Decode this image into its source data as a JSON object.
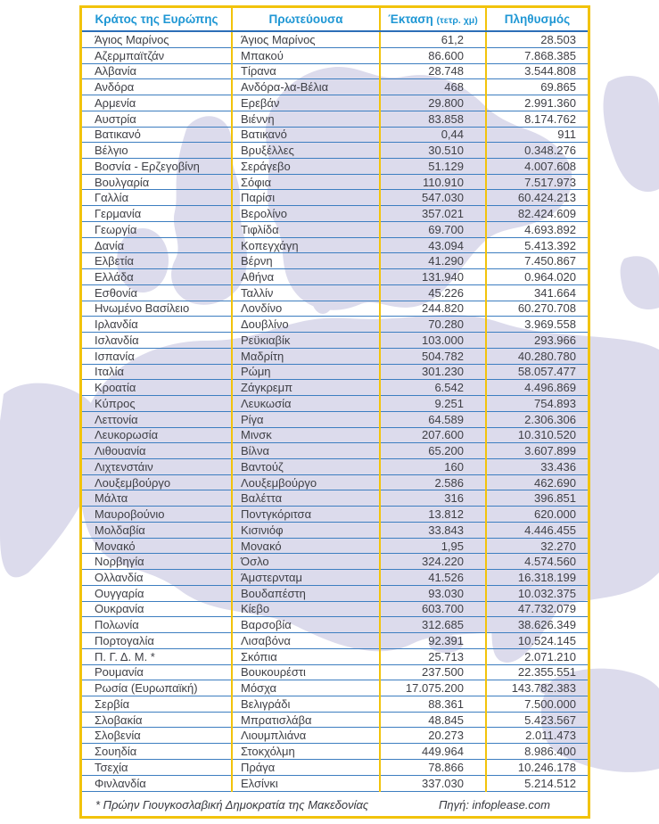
{
  "colors": {
    "frame_yellow": "#F2C30B",
    "header_blue": "#1F97D4",
    "header_rule_blue": "#2D6FB7",
    "row_rule_blue": "#3D7EC0",
    "body_text": "#3F4046",
    "map_lavender": "#DCDBEC"
  },
  "table": {
    "columns": [
      {
        "label": "Κράτος της Ευρώπης"
      },
      {
        "label": "Πρωτεύουσα"
      },
      {
        "label": "Έκταση",
        "unit": "(τετρ. χμ)"
      },
      {
        "label": "Πληθυσμός"
      }
    ],
    "rows": [
      {
        "country": "Άγιος Μαρίνος",
        "capital": "Άγιος Μαρίνος",
        "area": "61,2",
        "population": "28.503"
      },
      {
        "country": "Αζερμπαϊτζάν",
        "capital": "Μπακού",
        "area": "86.600",
        "population": "7.868.385"
      },
      {
        "country": "Αλβανία",
        "capital": "Τίρανα",
        "area": "28.748",
        "population": "3.544.808"
      },
      {
        "country": "Ανδόρα",
        "capital": "Ανδόρα-λα-Βέλια",
        "area": "468",
        "population": "69.865"
      },
      {
        "country": "Αρμενία",
        "capital": "Ερεβάν",
        "area": "29.800",
        "population": "2.991.360"
      },
      {
        "country": "Αυστρία",
        "capital": "Βιέννη",
        "area": "83.858",
        "population": "8.174.762"
      },
      {
        "country": "Βατικανό",
        "capital": "Βατικανό",
        "area": "0,44",
        "population": "911"
      },
      {
        "country": "Βέλγιο",
        "capital": "Βρυξέλλες",
        "area": "30.510",
        "population": "0.348.276"
      },
      {
        "country": "Βοσνία - Ερζεγοβίνη",
        "capital": "Σεράγεβο",
        "area": "51.129",
        "population": "4.007.608"
      },
      {
        "country": "Βουλγαρία",
        "capital": "Σόφια",
        "area": "110.910",
        "population": "7.517.973"
      },
      {
        "country": "Γαλλία",
        "capital": "Παρίσι",
        "area": "547.030",
        "population": "60.424.213"
      },
      {
        "country": "Γερμανία",
        "capital": "Βερολίνο",
        "area": "357.021",
        "population": "82.424.609"
      },
      {
        "country": "Γεωργία",
        "capital": "Τιφλίδα",
        "area": "69.700",
        "population": "4.693.892"
      },
      {
        "country": "Δανία",
        "capital": "Κοπεγχάγη",
        "area": "43.094",
        "population": "5.413.392"
      },
      {
        "country": "Ελβετία",
        "capital": "Βέρνη",
        "area": "41.290",
        "population": "7.450.867"
      },
      {
        "country": "Ελλάδα",
        "capital": "Αθήνα",
        "area": "131.940",
        "population": "0.964.020"
      },
      {
        "country": "Εσθονία",
        "capital": "Ταλλίν",
        "area": "45.226",
        "population": "341.664"
      },
      {
        "country": "Ηνωμένο Βασίλειο",
        "capital": "Λονδίνο",
        "area": "244.820",
        "population": "60.270.708"
      },
      {
        "country": "Ιρλανδία",
        "capital": "Δουβλίνο",
        "area": "70.280",
        "population": "3.969.558"
      },
      {
        "country": "Ισλανδία",
        "capital": "Ρεϋκιαβίκ",
        "area": "103.000",
        "population": "293.966"
      },
      {
        "country": "Ισπανία",
        "capital": "Μαδρίτη",
        "area": "504.782",
        "population": "40.280.780"
      },
      {
        "country": "Ιταλία",
        "capital": "Ρώμη",
        "area": "301.230",
        "population": "58.057.477"
      },
      {
        "country": "Κροατία",
        "capital": "Ζάγκρεμπ",
        "area": "6.542",
        "population": "4.496.869"
      },
      {
        "country": "Κύπρος",
        "capital": "Λευκωσία",
        "area": "9.251",
        "population": "754.893"
      },
      {
        "country": "Λεττονία",
        "capital": "Ρίγα",
        "area": "64.589",
        "population": "2.306.306"
      },
      {
        "country": "Λευκορωσία",
        "capital": "Μινσκ",
        "area": "207.600",
        "population": "10.310.520"
      },
      {
        "country": "Λιθουανία",
        "capital": "Βίλνα",
        "area": "65.200",
        "population": "3.607.899"
      },
      {
        "country": "Λιχτενστάιν",
        "capital": "Βαντούζ",
        "area": "160",
        "population": "33.436"
      },
      {
        "country": "Λουξεμβούργο",
        "capital": "Λουξεμβούργο",
        "area": "2.586",
        "population": "462.690"
      },
      {
        "country": "Μάλτα",
        "capital": "Βαλέττα",
        "area": "316",
        "population": "396.851"
      },
      {
        "country": "Μαυροβούνιο",
        "capital": "Ποντγκόριτσα",
        "area": "13.812",
        "population": "620.000"
      },
      {
        "country": "Μολδαβία",
        "capital": "Κισινιόφ",
        "area": "33.843",
        "population": "4.446.455"
      },
      {
        "country": "Μονακό",
        "capital": "Μονακό",
        "area": "1,95",
        "population": "32.270"
      },
      {
        "country": "Νορβηγία",
        "capital": "Όσλο",
        "area": "324.220",
        "population": "4.574.560"
      },
      {
        "country": "Ολλανδία",
        "capital": "Άμστερνταμ",
        "area": "41.526",
        "population": "16.318.199"
      },
      {
        "country": "Ουγγαρία",
        "capital": "Βουδαπέστη",
        "area": "93.030",
        "population": "10.032.375"
      },
      {
        "country": "Ουκρανία",
        "capital": "Κίεβο",
        "area": "603.700",
        "population": "47.732.079"
      },
      {
        "country": "Πολωνία",
        "capital": "Βαρσοβία",
        "area": "312.685",
        "population": "38.626.349"
      },
      {
        "country": "Πορτογαλία",
        "capital": "Λισαβόνα",
        "area": "92.391",
        "population": "10.524.145"
      },
      {
        "country": "Π. Γ. Δ. Μ. *",
        "capital": "Σκόπια",
        "area": "25.713",
        "population": "2.071.210"
      },
      {
        "country": "Ρουμανία",
        "capital": "Βουκουρέστι",
        "area": "237.500",
        "population": "22.355.551"
      },
      {
        "country": "Ρωσία (Ευρωπαϊκή)",
        "capital": "Μόσχα",
        "area": "17.075.200",
        "population": "143.782.383"
      },
      {
        "country": "Σερβία",
        "capital": "Βελιγράδι",
        "area": "88.361",
        "population": "7.500.000"
      },
      {
        "country": "Σλοβακία",
        "capital": "Μπρατισλάβα",
        "area": "48.845",
        "population": "5.423.567"
      },
      {
        "country": "Σλοβενία",
        "capital": "Λιουμπλιάνα",
        "area": "20.273",
        "population": "2.011.473"
      },
      {
        "country": "Σουηδία",
        "capital": "Στοκχόλμη",
        "area": "449.964",
        "population": "8.986.400"
      },
      {
        "country": "Τσεχία",
        "capital": "Πράγα",
        "area": "78.866",
        "population": "10.246.178"
      },
      {
        "country": "Φινλανδία",
        "capital": "Ελσίνκι",
        "area": "337.030",
        "population": "5.214.512"
      }
    ],
    "footnote": "* Πρώην Γιουγκοσλαβική Δημοκρατία της Μακεδονίας",
    "source": "Πηγή: infoplease.com"
  }
}
